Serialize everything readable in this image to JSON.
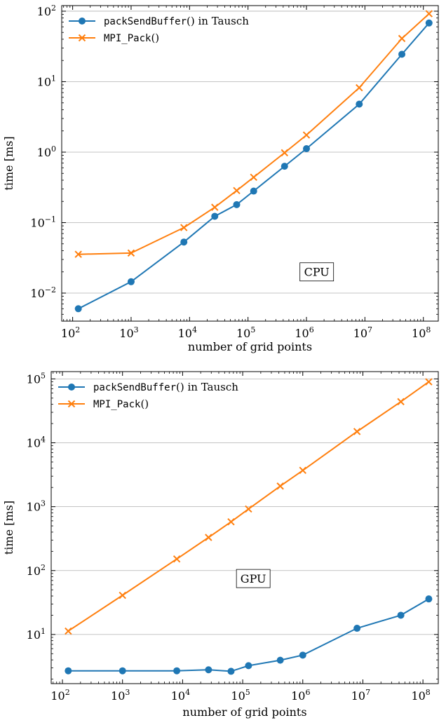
{
  "chart_data": [
    {
      "type": "line",
      "xscale": "log",
      "yscale": "log",
      "xlim": [
        65,
        180000000
      ],
      "ylim": [
        0.004,
        120
      ],
      "xlabel": "number of grid points",
      "ylabel": "time [ms]",
      "grid": "horizontal",
      "legend": "top-left",
      "annotation": "CPU",
      "annotation_data": {
        "x": 1500000,
        "y": 0.02
      },
      "xticks": [
        {
          "value": 100,
          "base": "10",
          "exp": "2"
        },
        {
          "value": 1000,
          "base": "10",
          "exp": "3"
        },
        {
          "value": 10000,
          "base": "10",
          "exp": "4"
        },
        {
          "value": 100000,
          "base": "10",
          "exp": "5"
        },
        {
          "value": 1000000,
          "base": "10",
          "exp": "6"
        },
        {
          "value": 10000000,
          "base": "10",
          "exp": "7"
        },
        {
          "value": 100000000,
          "base": "10",
          "exp": "8"
        }
      ],
      "yticks": [
        {
          "value": 0.01,
          "base": "10",
          "exp": "−2"
        },
        {
          "value": 0.1,
          "base": "10",
          "exp": "−1"
        },
        {
          "value": 1,
          "base": "10",
          "exp": "0"
        },
        {
          "value": 10,
          "base": "10",
          "exp": "1"
        },
        {
          "value": 100,
          "base": "10",
          "exp": "2"
        }
      ],
      "series": [
        {
          "name_mono": "packSendBuffer",
          "name_rest": "() in Tausch",
          "color": "#1f77b4",
          "marker": "circle",
          "x": [
            125,
            1000,
            8000,
            27000,
            64000,
            125000,
            421875,
            1000000,
            8000000,
            42875000,
            125000000
          ],
          "y": [
            0.006,
            0.0145,
            0.053,
            0.123,
            0.18,
            0.28,
            0.63,
            1.12,
            4.8,
            24.5,
            68
          ]
        },
        {
          "name_mono": "MPI_Pack",
          "name_rest": "()",
          "color": "#ff7f0e",
          "marker": "x",
          "x": [
            125,
            1000,
            8000,
            27000,
            64000,
            125000,
            421875,
            1000000,
            8000000,
            42875000,
            125000000
          ],
          "y": [
            0.0355,
            0.037,
            0.085,
            0.165,
            0.285,
            0.44,
            0.98,
            1.75,
            8.2,
            41,
            92
          ]
        }
      ]
    },
    {
      "type": "line",
      "xscale": "log",
      "yscale": "log",
      "xlim": [
        65,
        180000000
      ],
      "ylim": [
        1.7,
        130000
      ],
      "xlabel": "number of grid points",
      "ylabel": "time [ms]",
      "grid": "horizontal",
      "legend": "top-left",
      "annotation": "GPU",
      "annotation_data": {
        "x": 150000,
        "y": 75
      },
      "xticks": [
        {
          "value": 100,
          "base": "10",
          "exp": "2"
        },
        {
          "value": 1000,
          "base": "10",
          "exp": "3"
        },
        {
          "value": 10000,
          "base": "10",
          "exp": "4"
        },
        {
          "value": 100000,
          "base": "10",
          "exp": "5"
        },
        {
          "value": 1000000,
          "base": "10",
          "exp": "6"
        },
        {
          "value": 10000000,
          "base": "10",
          "exp": "7"
        },
        {
          "value": 100000000,
          "base": "10",
          "exp": "8"
        }
      ],
      "yticks": [
        {
          "value": 10,
          "base": "10",
          "exp": "1"
        },
        {
          "value": 100,
          "base": "10",
          "exp": "2"
        },
        {
          "value": 1000,
          "base": "10",
          "exp": "3"
        },
        {
          "value": 10000,
          "base": "10",
          "exp": "4"
        },
        {
          "value": 100000,
          "base": "10",
          "exp": "5"
        }
      ],
      "series": [
        {
          "name_mono": "packSendBuffer",
          "name_rest": "() in Tausch",
          "color": "#1f77b4",
          "marker": "circle",
          "x": [
            125,
            1000,
            8000,
            27000,
            64000,
            125000,
            421875,
            1000000,
            8000000,
            42875000,
            125000000
          ],
          "y": [
            2.7,
            2.7,
            2.7,
            2.8,
            2.65,
            3.25,
            3.95,
            4.75,
            12.5,
            20,
            36
          ]
        },
        {
          "name_mono": "MPI_Pack",
          "name_rest": "()",
          "color": "#ff7f0e",
          "marker": "x",
          "x": [
            125,
            1000,
            8000,
            27000,
            64000,
            125000,
            421875,
            1000000,
            8000000,
            42875000,
            125000000
          ],
          "y": [
            11.3,
            41,
            152,
            330,
            580,
            920,
            2100,
            3700,
            15000,
            44000,
            90000
          ]
        }
      ]
    }
  ]
}
